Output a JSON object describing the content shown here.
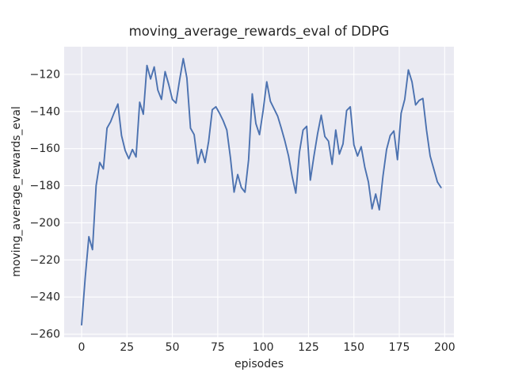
{
  "chart_data": {
    "type": "line",
    "title": "moving_average_rewards_eval of DDPG",
    "xlabel": "episodes",
    "ylabel": "moving_average_rewards_eval",
    "series": [
      {
        "name": "moving_average_rewards_eval",
        "color": "#4c72b0",
        "x": [
          0,
          2,
          4,
          6,
          8,
          10,
          12,
          14,
          16,
          18,
          20,
          22,
          24,
          26,
          28,
          30,
          32,
          34,
          36,
          38,
          40,
          42,
          44,
          46,
          48,
          50,
          52,
          54,
          56,
          58,
          60,
          62,
          64,
          66,
          68,
          70,
          72,
          74,
          76,
          78,
          80,
          82,
          84,
          86,
          88,
          90,
          92,
          94,
          96,
          98,
          100,
          102,
          104,
          106,
          108,
          110,
          112,
          114,
          116,
          118,
          120,
          122,
          124,
          126,
          128,
          130,
          132,
          134,
          136,
          138,
          140,
          142,
          144,
          146,
          148,
          150,
          152,
          154,
          156,
          158,
          160,
          162,
          164,
          166,
          168,
          170,
          172,
          174,
          176,
          178,
          180,
          182,
          184,
          186,
          188,
          190,
          192,
          194,
          196,
          198
        ],
        "y": [
          -255.0,
          -229.5,
          -207.5,
          -214.5,
          -180.0,
          -167.5,
          -171.0,
          -149.0,
          -145.5,
          -140.5,
          -136.0,
          -153.0,
          -161.0,
          -165.5,
          -160.5,
          -164.5,
          -135.0,
          -141.5,
          -115.2,
          -122.5,
          -116.0,
          -128.5,
          -133.5,
          -118.5,
          -125.5,
          -133.5,
          -135.5,
          -123.0,
          -111.5,
          -122.0,
          -149.0,
          -152.5,
          -168.0,
          -160.5,
          -167.5,
          -156.0,
          -139.0,
          -137.5,
          -141.0,
          -145.0,
          -150.0,
          -165.0,
          -183.5,
          -174.0,
          -181.0,
          -183.5,
          -166.0,
          -130.5,
          -146.5,
          -152.5,
          -139.5,
          -124.0,
          -134.5,
          -138.5,
          -142.5,
          -149.0,
          -156.0,
          -164.0,
          -175.0,
          -184.0,
          -162.0,
          -150.0,
          -148.0,
          -177.0,
          -164.0,
          -152.0,
          -142.0,
          -153.5,
          -156.0,
          -168.5,
          -150.0,
          -163.0,
          -157.5,
          -139.5,
          -137.5,
          -158.0,
          -164.0,
          -159.0,
          -170.0,
          -178.0,
          -192.5,
          -184.5,
          -193.0,
          -175.0,
          -160.5,
          -153.0,
          -150.5,
          -166.0,
          -141.0,
          -133.5,
          -117.6,
          -124.0,
          -136.5,
          -134.0,
          -133.0,
          -150.0,
          -164.0,
          -171.0,
          -178.0,
          -181.0
        ]
      }
    ],
    "xticks": [
      0,
      25,
      50,
      75,
      100,
      125,
      150,
      175,
      200
    ],
    "yticks": [
      -120,
      -140,
      -160,
      -180,
      -200,
      -220,
      -240,
      -260
    ],
    "xlim": [
      -9.6,
      205.1
    ],
    "ylim": [
      -261.7,
      -105.1
    ],
    "grid": true,
    "legend": "none",
    "colors": {
      "line": "#4c72b0",
      "plot_background": "#eaeaf2",
      "gridline": "#ffffff",
      "text": "#262626",
      "figure_background": "#ffffff"
    }
  }
}
